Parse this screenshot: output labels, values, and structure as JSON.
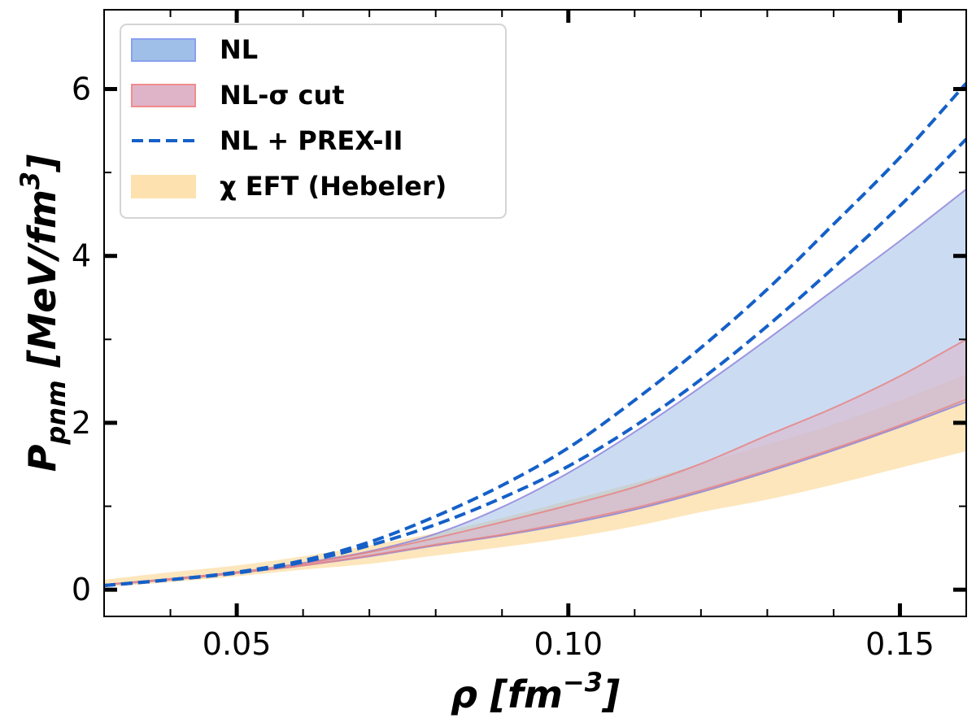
{
  "chart_data": {
    "type": "area",
    "x_axis": {
      "label": "ρ [fm⁻³]",
      "label_main": "ρ [",
      "label_unit": "fm",
      "label_sup": "−3",
      "label_close": "]",
      "range": [
        0.03,
        0.16
      ],
      "major_ticks": [
        0.05,
        0.1,
        0.15
      ],
      "major_tick_labels": [
        "0.05",
        "0.10",
        "0.15"
      ],
      "minor_ticks": [
        0.04,
        0.06,
        0.07,
        0.08,
        0.09,
        0.11,
        0.12,
        0.13,
        0.14,
        0.16
      ]
    },
    "y_axis": {
      "label": "P_pnm [MeV/fm³]",
      "label_main": "P",
      "label_sub": "pnm",
      "label_unit": " [MeV/fm",
      "label_sup": "3",
      "label_close": "]",
      "range": [
        -0.32,
        6.95
      ],
      "major_ticks": [
        0,
        2,
        4,
        6
      ],
      "major_tick_labels": [
        "0",
        "2",
        "4",
        "6"
      ],
      "minor_ticks": [
        1,
        3,
        5
      ]
    },
    "legend": {
      "position": "top-left",
      "items": [
        {
          "label": "NL",
          "kind": "band",
          "fill": "#a0bfe8",
          "stroke": "#8a9fee"
        },
        {
          "label": "NL-σ cut",
          "kind": "band",
          "fill": "#e0b4c8",
          "stroke": "#f08c8c"
        },
        {
          "label": "NL + PREX-II",
          "kind": "dashed-line",
          "stroke": "#1560c8"
        },
        {
          "label": "χ EFT (Hebeler)",
          "kind": "band",
          "fill": "#fde2b0",
          "stroke": "#fde2b0"
        }
      ]
    },
    "series": [
      {
        "name": "χ EFT (Hebeler)",
        "kind": "band",
        "color": "#fde2b0",
        "x": [
          0.03,
          0.04,
          0.05,
          0.06,
          0.07,
          0.08,
          0.09,
          0.1,
          0.11,
          0.12,
          0.13,
          0.14,
          0.15,
          0.16
        ],
        "lower": [
          0.03,
          0.09,
          0.16,
          0.24,
          0.31,
          0.41,
          0.51,
          0.62,
          0.76,
          0.93,
          1.08,
          1.26,
          1.46,
          1.66
        ],
        "upper": [
          0.12,
          0.21,
          0.29,
          0.4,
          0.53,
          0.68,
          0.86,
          1.07,
          1.28,
          1.51,
          1.74,
          1.98,
          2.27,
          2.58
        ]
      },
      {
        "name": "NL",
        "kind": "band",
        "color": "#a0bfe8",
        "x": [
          0.03,
          0.04,
          0.05,
          0.06,
          0.07,
          0.08,
          0.09,
          0.1,
          0.11,
          0.12,
          0.13,
          0.14,
          0.15,
          0.16
        ],
        "lower": [
          0.06,
          0.12,
          0.2,
          0.29,
          0.4,
          0.53,
          0.65,
          0.79,
          0.96,
          1.17,
          1.41,
          1.67,
          1.95,
          2.25
        ],
        "upper": [
          0.06,
          0.13,
          0.21,
          0.32,
          0.46,
          0.67,
          0.99,
          1.4,
          1.89,
          2.43,
          3.0,
          3.59,
          4.18,
          4.8
        ]
      },
      {
        "name": "NL-σ cut",
        "kind": "band",
        "color": "#e0b4c8",
        "x": [
          0.03,
          0.04,
          0.05,
          0.06,
          0.07,
          0.08,
          0.09,
          0.1,
          0.11,
          0.12,
          0.13,
          0.14,
          0.15,
          0.16
        ],
        "lower": [
          0.06,
          0.12,
          0.2,
          0.29,
          0.41,
          0.54,
          0.66,
          0.81,
          0.98,
          1.19,
          1.43,
          1.69,
          1.97,
          2.28
        ],
        "upper": [
          0.06,
          0.13,
          0.21,
          0.31,
          0.45,
          0.62,
          0.81,
          1.01,
          1.23,
          1.51,
          1.85,
          2.18,
          2.56,
          3.0
        ]
      },
      {
        "name": "NL + PREX-II",
        "kind": "dashed-line",
        "color": "#1560c8",
        "x": [
          0.03,
          0.04,
          0.05,
          0.06,
          0.07,
          0.08,
          0.09,
          0.1,
          0.11,
          0.12,
          0.13,
          0.14,
          0.15,
          0.16
        ],
        "y": [
          0.05,
          0.12,
          0.21,
          0.35,
          0.57,
          0.88,
          1.25,
          1.7,
          2.27,
          2.9,
          3.6,
          4.38,
          5.18,
          6.07
        ]
      },
      {
        "name": "NL + PREX-II (lower)",
        "kind": "dashed-line",
        "color": "#1560c8",
        "x": [
          0.03,
          0.04,
          0.05,
          0.06,
          0.07,
          0.08,
          0.09,
          0.1,
          0.11,
          0.12,
          0.13,
          0.14,
          0.15,
          0.16
        ],
        "y": [
          0.05,
          0.12,
          0.2,
          0.33,
          0.53,
          0.78,
          1.1,
          1.48,
          1.96,
          2.52,
          3.16,
          3.86,
          4.6,
          5.4
        ]
      }
    ]
  }
}
